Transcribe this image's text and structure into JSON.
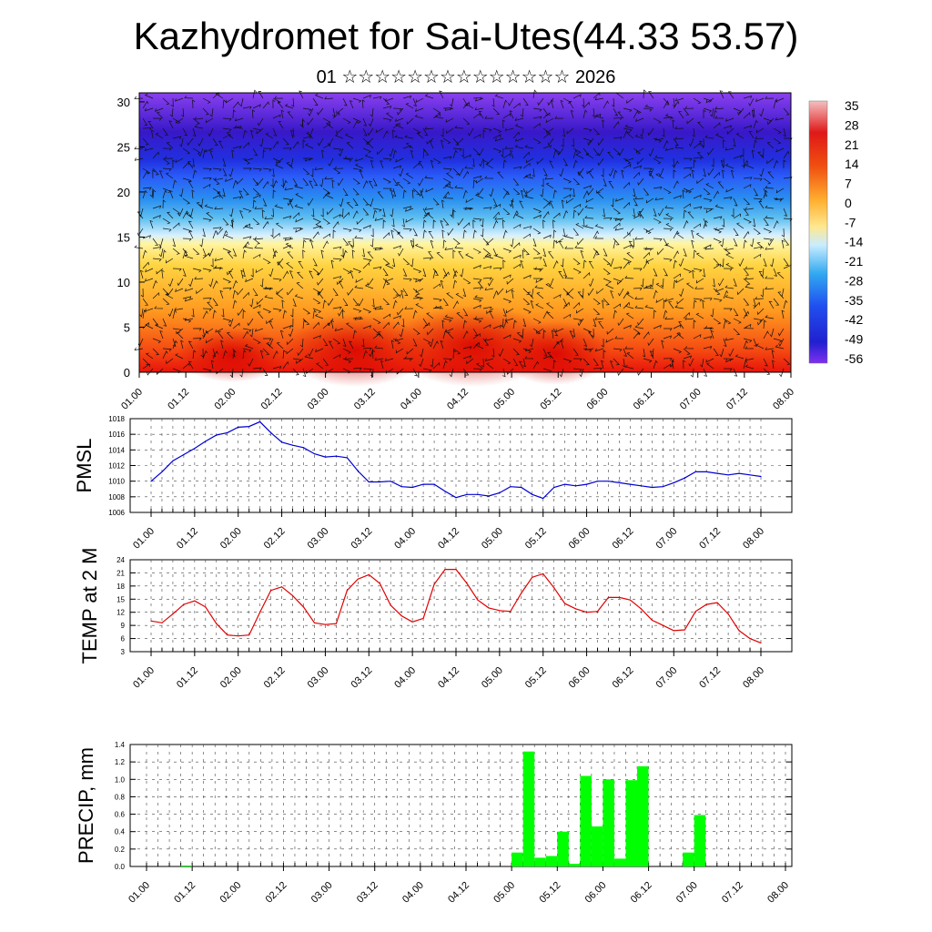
{
  "header": {
    "title": "Kazhydromet for Sai-Utes(44.33 53.57)",
    "subtitle": "01 ☆☆☆☆☆☆☆☆☆☆☆☆☆☆ 2026"
  },
  "time_ticks": [
    "01.00",
    "01.12",
    "02.00",
    "02.12",
    "03.00",
    "03.12",
    "04.00",
    "04.12",
    "05.00",
    "05.12",
    "06.00",
    "06.12",
    "07.00",
    "07.12",
    "08.00"
  ],
  "chart_data": [
    {
      "type": "heatmap",
      "title": "Kazhydromet for Sai-Utes(44.33 53.57)",
      "subtitle": "01 ☆☆☆☆☆☆☆☆☆☆☆☆☆☆ 2026",
      "x_ticks": [
        "01.00",
        "01.12",
        "02.00",
        "02.12",
        "03.00",
        "03.12",
        "04.00",
        "04.12",
        "05.00",
        "05.12",
        "06.00",
        "06.12",
        "07.00",
        "07.12",
        "08.00"
      ],
      "y_ticks": [
        0,
        5,
        10,
        15,
        20,
        25,
        30
      ],
      "ylim": [
        0,
        31
      ],
      "colorbar_labels": [
        "35",
        "28",
        "21",
        "14",
        "7",
        "0",
        "-7",
        "-14",
        "-21",
        "-28",
        "-35",
        "-42",
        "-49",
        "-56"
      ],
      "overlay": "wind barbs",
      "colors": {
        "hot": "#e8140a",
        "warm": "#ffd340",
        "cold": "#4a5cff",
        "coldest": "#3818c8"
      }
    },
    {
      "type": "line",
      "ylabel": "PMSL",
      "ylim": [
        1006,
        1018
      ],
      "y_ticks": [
        "1006",
        "1008",
        "1010",
        "1012",
        "1014",
        "1016",
        "1018"
      ],
      "x_ticks": [
        "01.00",
        "01.12",
        "02.00",
        "02.12",
        "03.00",
        "03.12",
        "04.00",
        "04.12",
        "05.00",
        "05.12",
        "06.00",
        "06.12",
        "07.00",
        "07.12",
        "08.00"
      ],
      "color": "#0000d0",
      "values": [
        1010,
        1011.2,
        1012.6,
        1013.4,
        1014.2,
        1015.1,
        1015.9,
        1016.2,
        1016.9,
        1017.0,
        1017.6,
        1016.2,
        1015.0,
        1014.6,
        1014.3,
        1013.5,
        1013.1,
        1013.2,
        1013.0,
        1011.3,
        1009.9,
        1009.9,
        1010.0,
        1009.3,
        1009.2,
        1009.6,
        1009.6,
        1008.7,
        1007.9,
        1008.3,
        1008.3,
        1008.1,
        1008.5,
        1009.3,
        1009.2,
        1008.3,
        1007.8,
        1009.2,
        1009.6,
        1009.4,
        1009.6,
        1010.0,
        1010.0,
        1009.8,
        1009.6,
        1009.4,
        1009.2,
        1009.3,
        1009.8,
        1010.4,
        1011.2,
        1011.2,
        1011.0,
        1010.8,
        1011.0,
        1010.8,
        1010.6
      ]
    },
    {
      "type": "line",
      "ylabel": "TEMP at 2 M",
      "ylim": [
        3,
        24
      ],
      "y_ticks": [
        "3",
        "6",
        "9",
        "12",
        "15",
        "18",
        "21",
        "24"
      ],
      "x_ticks": [
        "01.00",
        "01.12",
        "02.00",
        "02.12",
        "03.00",
        "03.12",
        "04.00",
        "04.12",
        "05.00",
        "05.12",
        "06.00",
        "06.12",
        "07.00",
        "07.12",
        "08.00"
      ],
      "color": "#e00000",
      "values": [
        10,
        9.6,
        11.6,
        13.8,
        14.6,
        13.2,
        9.4,
        6.8,
        6.6,
        6.8,
        12.0,
        17.0,
        17.8,
        15.8,
        13.2,
        9.6,
        9.2,
        9.4,
        17.0,
        19.6,
        20.6,
        18.6,
        13.6,
        11.2,
        9.8,
        10.6,
        18.4,
        21.8,
        21.8,
        18.6,
        14.8,
        13.0,
        12.4,
        12.2,
        16.4,
        20.0,
        20.8,
        17.6,
        14.0,
        12.8,
        12.0,
        12.2,
        15.4,
        15.4,
        14.8,
        12.8,
        10.2,
        9.0,
        7.8,
        8.0,
        12.2,
        13.8,
        14.2,
        11.6,
        7.8,
        6.0,
        5.0
      ]
    },
    {
      "type": "bar",
      "ylabel": "PRECIP, mm",
      "ylim": [
        0,
        1.4
      ],
      "y_ticks": [
        "0.0",
        "0.2",
        "0.4",
        "0.6",
        "0.8",
        "1.0",
        "1.2",
        "1.4"
      ],
      "x_ticks": [
        "01.00",
        "01.12",
        "02.00",
        "02.12",
        "03.00",
        "03.12",
        "04.00",
        "04.12",
        "05.00",
        "05.12",
        "06.00",
        "06.12",
        "07.00",
        "07.12",
        "08.00"
      ],
      "color": "#00ff00",
      "values": [
        0,
        0,
        0,
        0.01,
        0,
        0,
        0,
        0,
        0,
        0,
        0,
        0,
        0,
        0,
        0,
        0,
        0,
        0,
        0,
        0,
        0,
        0,
        0,
        0,
        0,
        0,
        0,
        0,
        0,
        0,
        0,
        0,
        0.16,
        1.32,
        0.1,
        0.12,
        0.4,
        0.03,
        1.04,
        0.46,
        1.0,
        0.09,
        0.99,
        1.15,
        0,
        0,
        0,
        0.16,
        0.59,
        0,
        0,
        0,
        0,
        0,
        0,
        0
      ]
    }
  ]
}
